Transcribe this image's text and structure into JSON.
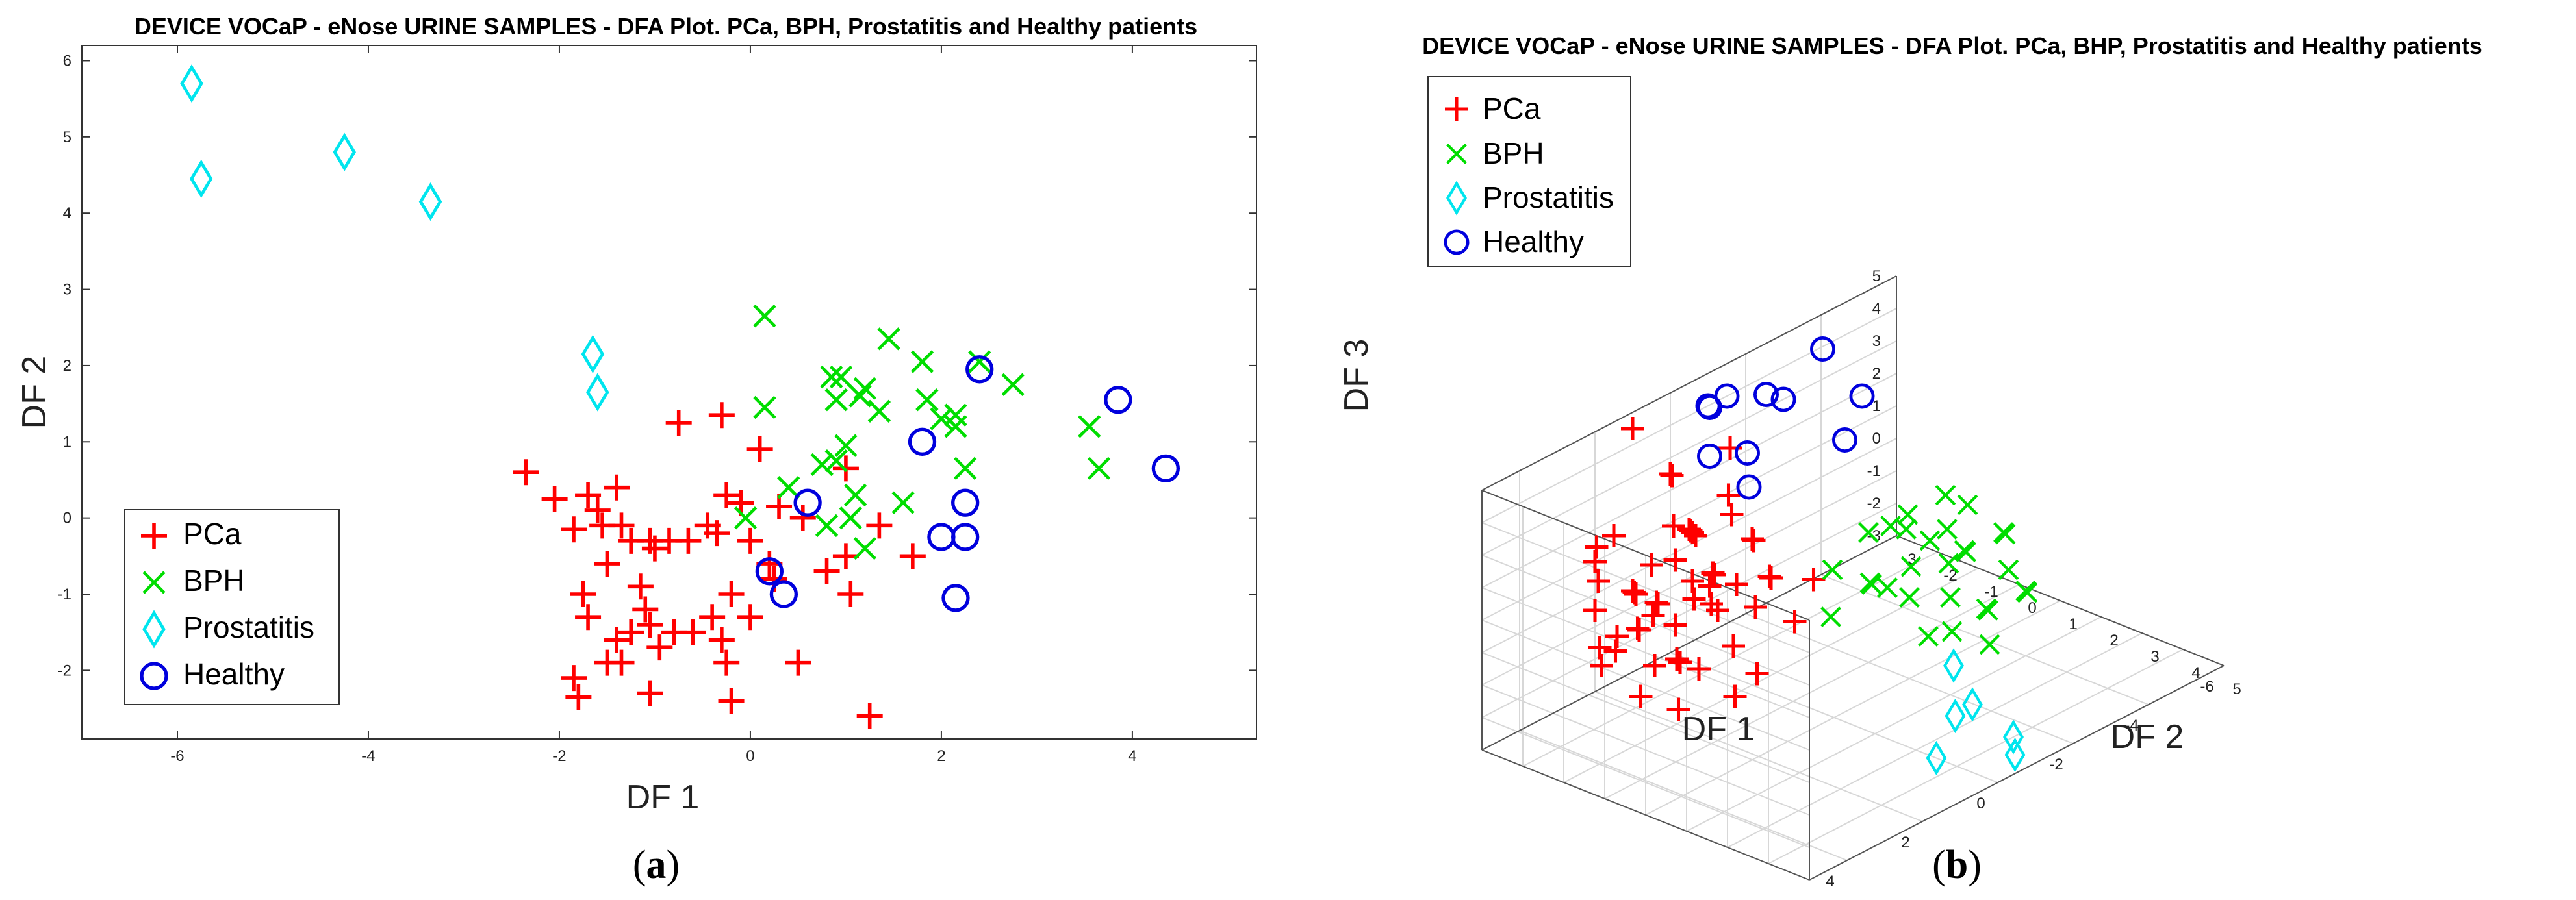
{
  "chart_data": [
    {
      "type": "scatter",
      "panel": "a",
      "title": "DEVICE VOCaP - eNose URINE SAMPLES - DFA Plot. PCa, BPH, Prostatitis and Healthy patients",
      "xlabel": "DF 1",
      "ylabel": "DF 2",
      "xlim": [
        -7,
        5.3
      ],
      "ylim": [
        -2.9,
        6.2
      ],
      "xticks": [
        -6,
        -4,
        -2,
        0,
        2,
        4
      ],
      "yticks": [
        -2,
        -1,
        0,
        1,
        2,
        3,
        4,
        5,
        6
      ],
      "legend_position": "bottom-left",
      "caption": "(a)",
      "series": [
        {
          "name": "PCa",
          "marker": "plus",
          "color": "#ff0000",
          "points": [
            [
              -2.35,
              0.6
            ],
            [
              -2.05,
              0.25
            ],
            [
              -1.85,
              -0.15
            ],
            [
              -1.7,
              0.3
            ],
            [
              -1.6,
              0.1
            ],
            [
              -1.55,
              -0.1
            ],
            [
              -1.4,
              0.4
            ],
            [
              -1.35,
              -0.1
            ],
            [
              -1.25,
              -0.3
            ],
            [
              -1.05,
              -0.3
            ],
            [
              -1.0,
              -0.4
            ],
            [
              -0.85,
              -0.3
            ],
            [
              -0.65,
              -0.3
            ],
            [
              -0.45,
              -0.1
            ],
            [
              -0.35,
              -0.2
            ],
            [
              -0.25,
              0.3
            ],
            [
              -0.1,
              0.2
            ],
            [
              0.0,
              -0.3
            ],
            [
              0.2,
              -0.6
            ],
            [
              0.3,
              0.15
            ],
            [
              -0.75,
              1.25
            ],
            [
              -0.3,
              1.35
            ],
            [
              0.1,
              0.9
            ],
            [
              -1.75,
              -1.0
            ],
            [
              -1.7,
              -1.3
            ],
            [
              -1.5,
              -0.6
            ],
            [
              -1.4,
              -1.6
            ],
            [
              -1.35,
              -1.9
            ],
            [
              -1.25,
              -1.5
            ],
            [
              -1.15,
              -0.9
            ],
            [
              -1.1,
              -1.2
            ],
            [
              -1.05,
              -1.4
            ],
            [
              -0.95,
              -1.7
            ],
            [
              -0.8,
              -1.5
            ],
            [
              -0.6,
              -1.5
            ],
            [
              -0.4,
              -1.3
            ],
            [
              -0.3,
              -1.6
            ],
            [
              -0.25,
              -1.9
            ],
            [
              -0.2,
              -1.0
            ],
            [
              0.0,
              -1.3
            ],
            [
              0.25,
              -0.8
            ],
            [
              -1.5,
              -1.9
            ],
            [
              -1.05,
              -2.3
            ],
            [
              -1.85,
              -2.1
            ],
            [
              -1.8,
              -2.35
            ],
            [
              -0.2,
              -2.4
            ],
            [
              0.5,
              -1.9
            ],
            [
              0.55,
              0.0
            ],
            [
              0.8,
              -0.7
            ],
            [
              1.0,
              -0.5
            ],
            [
              1.05,
              -1.0
            ],
            [
              1.25,
              -2.6
            ],
            [
              1.35,
              -0.1
            ],
            [
              1.7,
              -0.5
            ],
            [
              1.0,
              0.65
            ]
          ]
        },
        {
          "name": "BPH",
          "marker": "x",
          "color": "#00dd00",
          "points": [
            [
              0.15,
              2.65
            ],
            [
              0.15,
              1.45
            ],
            [
              -0.05,
              0.0
            ],
            [
              0.4,
              0.4
            ],
            [
              0.75,
              0.7
            ],
            [
              0.8,
              -0.1
            ],
            [
              0.85,
              1.85
            ],
            [
              0.9,
              1.55
            ],
            [
              0.9,
              0.75
            ],
            [
              0.95,
              1.85
            ],
            [
              1.0,
              0.95
            ],
            [
              1.05,
              0.0
            ],
            [
              1.1,
              0.3
            ],
            [
              1.2,
              -0.4
            ],
            [
              1.2,
              1.7
            ],
            [
              1.35,
              1.4
            ],
            [
              1.45,
              2.35
            ],
            [
              1.6,
              0.2
            ],
            [
              1.8,
              2.05
            ],
            [
              1.85,
              1.55
            ],
            [
              2.0,
              1.3
            ],
            [
              2.15,
              1.2
            ],
            [
              2.15,
              1.35
            ],
            [
              2.25,
              0.65
            ],
            [
              2.4,
              2.05
            ],
            [
              2.75,
              1.75
            ],
            [
              3.55,
              1.2
            ],
            [
              3.65,
              0.65
            ],
            [
              1.15,
              1.6
            ]
          ]
        },
        {
          "name": "Prostatitis",
          "marker": "diamond",
          "color": "#00e5ee",
          "points": [
            [
              -5.85,
              5.7
            ],
            [
              -5.75,
              4.45
            ],
            [
              -4.25,
              4.8
            ],
            [
              -3.35,
              4.15
            ],
            [
              -1.65,
              2.15
            ],
            [
              -1.6,
              1.65
            ]
          ]
        },
        {
          "name": "Healthy",
          "marker": "circle",
          "color": "#0000dd",
          "points": [
            [
              0.2,
              -0.7
            ],
            [
              0.35,
              -1.0
            ],
            [
              0.6,
              0.2
            ],
            [
              1.8,
              1.0
            ],
            [
              2.0,
              -0.25
            ],
            [
              2.15,
              -1.05
            ],
            [
              2.25,
              -0.25
            ],
            [
              2.25,
              0.2
            ],
            [
              2.4,
              1.95
            ],
            [
              3.85,
              1.55
            ],
            [
              4.35,
              0.65
            ]
          ]
        }
      ]
    },
    {
      "type": "scatter3d",
      "panel": "b",
      "title": "DEVICE VOCaP - eNose URINE SAMPLES - DFA Plot. PCa, BHP, Prostatitis and Healthy patients",
      "xlabel": "DF 1",
      "ylabel": "DF 2",
      "zlabel": "DF 3",
      "xticks": [
        -6,
        -4,
        -2,
        0,
        2,
        4
      ],
      "yticks": [
        -3,
        -2,
        -1,
        0,
        1,
        2,
        3,
        4,
        5
      ],
      "zticks": [
        -3,
        -2,
        -1,
        0,
        1,
        2,
        3,
        4,
        5
      ],
      "xlim": [
        -6,
        5
      ],
      "ylim": [
        -3,
        5
      ],
      "zlim": [
        -3,
        5
      ],
      "legend_position": "top-left",
      "caption": "(b)",
      "series": [
        {
          "name": "PCa",
          "marker": "plus",
          "color": "#ff0000",
          "points": [
            [
              1.0,
              -1.0,
              1.0
            ],
            [
              0.5,
              -1.5,
              0.5
            ],
            [
              0.0,
              -1.0,
              1.5
            ],
            [
              0.5,
              -2.0,
              0.0
            ],
            [
              1.5,
              -1.5,
              -0.5
            ],
            [
              1.0,
              -2.5,
              -1.0
            ],
            [
              2.0,
              -2.0,
              0.5
            ],
            [
              0.0,
              -2.5,
              1.0
            ],
            [
              1.5,
              -3.0,
              1.5
            ],
            [
              0.5,
              -3.0,
              0.0
            ],
            [
              2.0,
              -1.0,
              -1.0
            ],
            [
              1.0,
              -2.0,
              2.0
            ],
            [
              0.0,
              -3.0,
              2.5
            ],
            [
              1.5,
              -2.5,
              0.0
            ],
            [
              2.5,
              -2.0,
              -0.5
            ],
            [
              -0.5,
              -3.0,
              0.5
            ],
            [
              1.0,
              -3.0,
              -0.5
            ],
            [
              2.0,
              -3.0,
              1.0
            ],
            [
              0.5,
              -1.0,
              -1.5
            ],
            [
              1.5,
              -1.0,
              2.5
            ],
            [
              -1.0,
              -2.5,
              1.5
            ],
            [
              2.5,
              -1.5,
              0.0
            ],
            [
              0.0,
              -2.0,
              -1.0
            ],
            [
              1.0,
              0.0,
              0.5
            ],
            [
              2.0,
              0.0,
              1.0
            ],
            [
              -0.5,
              -2.0,
              3.5
            ],
            [
              0.5,
              -2.5,
              3.0
            ],
            [
              3.0,
              -1.0,
              0.5
            ],
            [
              1.5,
              0.5,
              -1.0
            ],
            [
              2.5,
              -0.5,
              -2.0
            ],
            [
              0.0,
              -1.5,
              2.0
            ],
            [
              1.0,
              -3.0,
              4.5
            ],
            [
              3.0,
              -2.0,
              1.5
            ],
            [
              2.0,
              -2.5,
              -1.5
            ],
            [
              -0.5,
              -1.0,
              0.0
            ],
            [
              1.5,
              -1.5,
              1.5
            ],
            [
              0.5,
              0.5,
              0.0
            ],
            [
              2.5,
              0.0,
              -0.5
            ],
            [
              3.5,
              -1.5,
              0.0
            ],
            [
              1.0,
              -0.5,
              -2.5
            ],
            [
              -1.0,
              -1.5,
              -0.5
            ],
            [
              2.0,
              -3.0,
              -0.5
            ],
            [
              0.5,
              -2.0,
              1.5
            ],
            [
              3.0,
              0.0,
              0.0
            ],
            [
              1.5,
              -2.0,
              -2.0
            ],
            [
              0.0,
              0.5,
              1.0
            ],
            [
              2.5,
              -2.5,
              2.0
            ],
            [
              1.0,
              -1.5,
              0.0
            ],
            [
              3.5,
              -0.5,
              -1.0
            ],
            [
              -0.5,
              -2.5,
              -1.0
            ],
            [
              2.0,
              -1.5,
              0.5
            ],
            [
              0.5,
              -0.5,
              2.0
            ],
            [
              4.0,
              -1.0,
              0.0
            ],
            [
              1.5,
              0.0,
              1.5
            ],
            [
              2.5,
              -1.0,
              1.0
            ]
          ]
        },
        {
          "name": "BPH",
          "marker": "x",
          "color": "#00dd00",
          "points": [
            [
              -3.0,
              1.0,
              1.0
            ],
            [
              -2.5,
              1.5,
              0.5
            ],
            [
              -3.5,
              1.0,
              0.0
            ],
            [
              -2.0,
              1.0,
              -0.5
            ],
            [
              -3.0,
              2.0,
              -1.0
            ],
            [
              -2.5,
              0.5,
              1.5
            ],
            [
              -4.0,
              1.5,
              0.5
            ],
            [
              -2.0,
              2.0,
              0.0
            ],
            [
              -3.5,
              2.5,
              -0.5
            ],
            [
              -1.5,
              1.5,
              1.0
            ],
            [
              -2.5,
              2.5,
              -1.5
            ],
            [
              -3.0,
              0.0,
              0.5
            ],
            [
              -1.5,
              0.5,
              0.0
            ],
            [
              -4.0,
              2.0,
              -1.0
            ],
            [
              -2.0,
              0.0,
              1.0
            ],
            [
              -3.5,
              0.5,
              1.5
            ],
            [
              -1.0,
              1.0,
              0.5
            ],
            [
              -2.5,
              1.0,
              -2.0
            ],
            [
              -3.0,
              1.5,
              2.0
            ],
            [
              -1.5,
              2.5,
              -0.5
            ],
            [
              -4.5,
              1.0,
              0.0
            ],
            [
              -2.0,
              1.5,
              1.5
            ],
            [
              -1.0,
              0.0,
              -1.0
            ],
            [
              -3.5,
              1.5,
              -1.5
            ],
            [
              -0.5,
              0.5,
              1.0
            ],
            [
              -2.5,
              0.0,
              -1.0
            ],
            [
              -1.5,
              1.0,
              2.0
            ],
            [
              -3.0,
              2.5,
              0.5
            ],
            [
              -4.0,
              0.5,
              -0.5
            ]
          ]
        },
        {
          "name": "Prostatitis",
          "marker": "diamond",
          "color": "#00e5ee",
          "points": [
            [
              -1.0,
              3.0,
              -1.0
            ],
            [
              -0.5,
              3.5,
              -2.0
            ],
            [
              -1.5,
              3.0,
              -2.5
            ],
            [
              0.0,
              3.5,
              -3.0
            ],
            [
              -1.5,
              4.0,
              -3.0
            ],
            [
              -1.0,
              4.5,
              -3.0
            ]
          ]
        },
        {
          "name": "Healthy",
          "marker": "circle",
          "color": "#0000dd",
          "points": [
            [
              -3.5,
              -2.5,
              4.5
            ],
            [
              -2.0,
              -2.5,
              4.0
            ],
            [
              -1.5,
              -3.0,
              4.0
            ],
            [
              -1.0,
              -3.0,
              4.0
            ],
            [
              -0.5,
              -2.5,
              4.5
            ],
            [
              -3.0,
              -3.0,
              3.0
            ],
            [
              -4.0,
              -2.0,
              3.0
            ],
            [
              -3.0,
              -1.5,
              2.5
            ],
            [
              -1.5,
              -2.5,
              2.5
            ],
            [
              -0.5,
              -2.5,
              3.0
            ],
            [
              -1.0,
              -2.0,
              2.0
            ]
          ]
        }
      ]
    }
  ]
}
